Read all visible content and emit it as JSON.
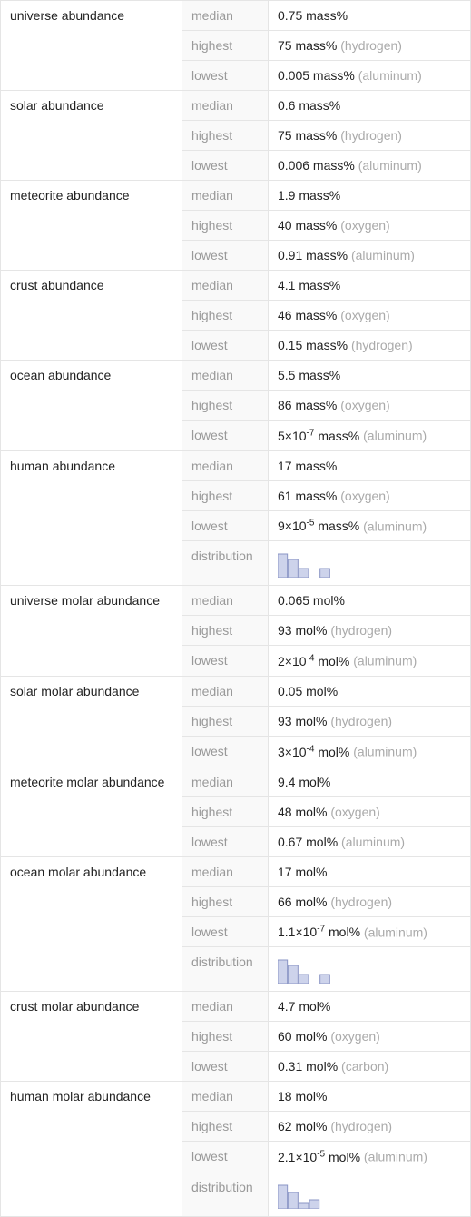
{
  "chart_style": {
    "bar_fill": "#cdd3eb",
    "bar_stroke": "#8a95c5",
    "width": 70,
    "height": 32
  },
  "groups": [
    {
      "label": "universe abundance",
      "rows": [
        {
          "stat": "median",
          "value": "0.75 mass%"
        },
        {
          "stat": "highest",
          "value": "75 mass%",
          "qualifier": "(hydrogen)"
        },
        {
          "stat": "lowest",
          "value": "0.005 mass%",
          "qualifier": "(aluminum)"
        }
      ]
    },
    {
      "label": "solar abundance",
      "rows": [
        {
          "stat": "median",
          "value": "0.6 mass%"
        },
        {
          "stat": "highest",
          "value": "75 mass%",
          "qualifier": "(hydrogen)"
        },
        {
          "stat": "lowest",
          "value": "0.006 mass%",
          "qualifier": "(aluminum)"
        }
      ]
    },
    {
      "label": "meteorite abundance",
      "rows": [
        {
          "stat": "median",
          "value": "1.9 mass%"
        },
        {
          "stat": "highest",
          "value": "40 mass%",
          "qualifier": "(oxygen)"
        },
        {
          "stat": "lowest",
          "value": "0.91 mass%",
          "qualifier": "(aluminum)"
        }
      ]
    },
    {
      "label": "crust abundance",
      "rows": [
        {
          "stat": "median",
          "value": "4.1 mass%"
        },
        {
          "stat": "highest",
          "value": "46 mass%",
          "qualifier": "(oxygen)"
        },
        {
          "stat": "lowest",
          "value": "0.15 mass%",
          "qualifier": "(hydrogen)"
        }
      ]
    },
    {
      "label": "ocean abundance",
      "rows": [
        {
          "stat": "median",
          "value": "5.5 mass%"
        },
        {
          "stat": "highest",
          "value": "86 mass%",
          "qualifier": "(oxygen)"
        },
        {
          "stat": "lowest",
          "value_html": "5×10<sup class='sup'>-7</sup> mass%",
          "qualifier": "(aluminum)"
        }
      ]
    },
    {
      "label": "human abundance",
      "rows": [
        {
          "stat": "median",
          "value": "17 mass%"
        },
        {
          "stat": "highest",
          "value": "61 mass%",
          "qualifier": "(oxygen)"
        },
        {
          "stat": "lowest",
          "value_html": "9×10<sup class='sup'>-5</sup> mass%",
          "qualifier": "(aluminum)"
        },
        {
          "stat": "distribution",
          "chart": {
            "bars": [
              26,
              20,
              10,
              0,
              10,
              0
            ]
          }
        }
      ]
    },
    {
      "label": "universe molar abundance",
      "rows": [
        {
          "stat": "median",
          "value": "0.065 mol%"
        },
        {
          "stat": "highest",
          "value": "93 mol%",
          "qualifier": "(hydrogen)"
        },
        {
          "stat": "lowest",
          "value_html": "2×10<sup class='sup'>-4</sup> mol%",
          "qualifier": "(aluminum)"
        }
      ]
    },
    {
      "label": "solar molar abundance",
      "rows": [
        {
          "stat": "median",
          "value": "0.05 mol%"
        },
        {
          "stat": "highest",
          "value": "93 mol%",
          "qualifier": "(hydrogen)"
        },
        {
          "stat": "lowest",
          "value_html": "3×10<sup class='sup'>-4</sup> mol%",
          "qualifier": "(aluminum)"
        }
      ]
    },
    {
      "label": "meteorite molar abundance",
      "rows": [
        {
          "stat": "median",
          "value": "9.4 mol%"
        },
        {
          "stat": "highest",
          "value": "48 mol%",
          "qualifier": "(oxygen)"
        },
        {
          "stat": "lowest",
          "value": "0.67 mol%",
          "qualifier": "(aluminum)"
        }
      ]
    },
    {
      "label": "ocean molar abundance",
      "rows": [
        {
          "stat": "median",
          "value": "17 mol%"
        },
        {
          "stat": "highest",
          "value": "66 mol%",
          "qualifier": "(hydrogen)"
        },
        {
          "stat": "lowest",
          "value_html": "1.1×10<sup class='sup'>-7</sup> mol%",
          "qualifier": "(aluminum)"
        },
        {
          "stat": "distribution",
          "chart": {
            "bars": [
              26,
              20,
              10,
              0,
              10,
              0
            ]
          }
        }
      ]
    },
    {
      "label": "crust molar abundance",
      "rows": [
        {
          "stat": "median",
          "value": "4.7 mol%"
        },
        {
          "stat": "highest",
          "value": "60 mol%",
          "qualifier": "(oxygen)"
        },
        {
          "stat": "lowest",
          "value": "0.31 mol%",
          "qualifier": "(carbon)"
        }
      ]
    },
    {
      "label": "human molar abundance",
      "rows": [
        {
          "stat": "median",
          "value": "18 mol%"
        },
        {
          "stat": "highest",
          "value": "62 mol%",
          "qualifier": "(hydrogen)"
        },
        {
          "stat": "lowest",
          "value_html": "2.1×10<sup class='sup'>-5</sup> mol%",
          "qualifier": "(aluminum)"
        },
        {
          "stat": "distribution",
          "chart": {
            "bars": [
              26,
              18,
              6,
              10,
              0,
              0
            ]
          }
        }
      ]
    }
  ]
}
